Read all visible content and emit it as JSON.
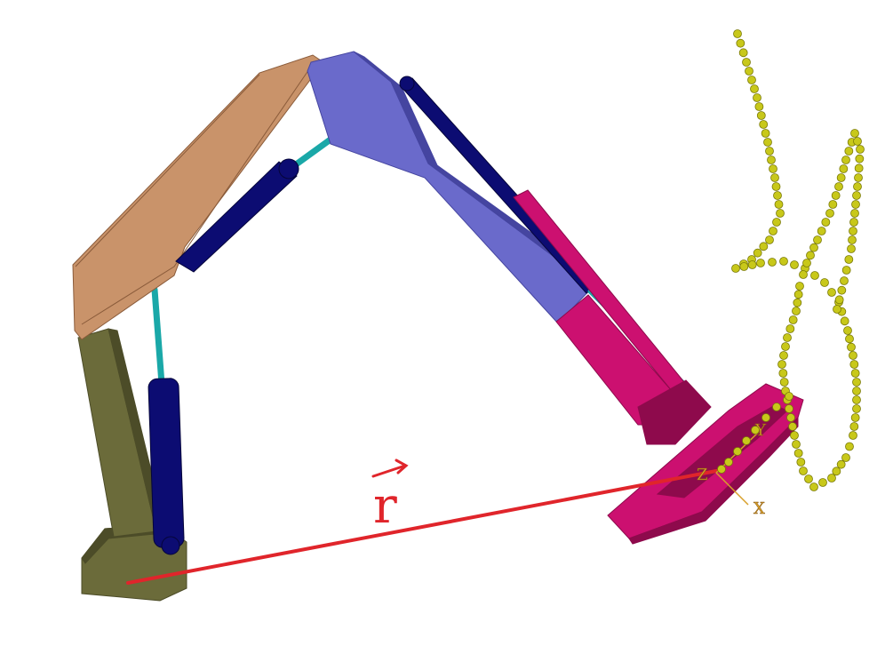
{
  "figure": {
    "vector_label": "r",
    "frame_axes": [
      "X",
      "Y",
      "Z"
    ]
  },
  "colors": {
    "base": "#6b6b3a",
    "base_shade": "#4c4c28",
    "boom": "#c9936a",
    "boom_edge": "#8a5b3a",
    "arm": "#6a6acb",
    "arm_edge": "#4545a0",
    "cylinder": "#0c0c72",
    "rod": "#1aa8a8",
    "tool": "#cc1070",
    "tool_shade": "#8e0a4c",
    "trajectory": "#c8c81a",
    "trajectory_edge": "#7a7a08",
    "vector": "#e0252b",
    "frame": "#d8a02a"
  }
}
